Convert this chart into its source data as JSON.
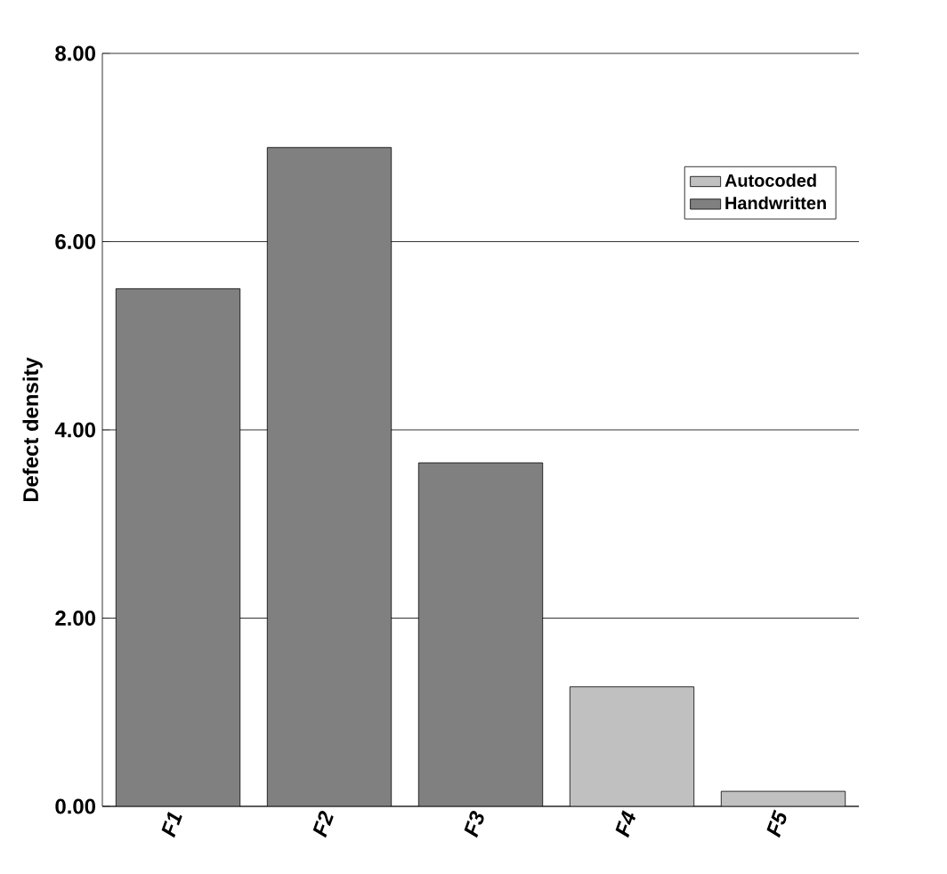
{
  "chart_data": {
    "type": "bar",
    "categories": [
      "F1",
      "F2",
      "F3",
      "F4",
      "F5"
    ],
    "series": [
      {
        "name": "Autocoded",
        "color": "#c0c0c0",
        "values": [
          null,
          null,
          null,
          1.27,
          0.16
        ]
      },
      {
        "name": "Handwritten",
        "color": "#808080",
        "values": [
          5.5,
          7.0,
          3.65,
          null,
          null
        ]
      }
    ],
    "ylabel": "Defect density",
    "ylim": [
      0,
      8
    ],
    "yticks": [
      {
        "value": 0,
        "label": "0.00"
      },
      {
        "value": 2,
        "label": "2.00"
      },
      {
        "value": 4,
        "label": "4.00"
      },
      {
        "value": 6,
        "label": "6.00"
      },
      {
        "value": 8,
        "label": "8.00"
      }
    ],
    "grid": "y",
    "legend": "top right"
  }
}
